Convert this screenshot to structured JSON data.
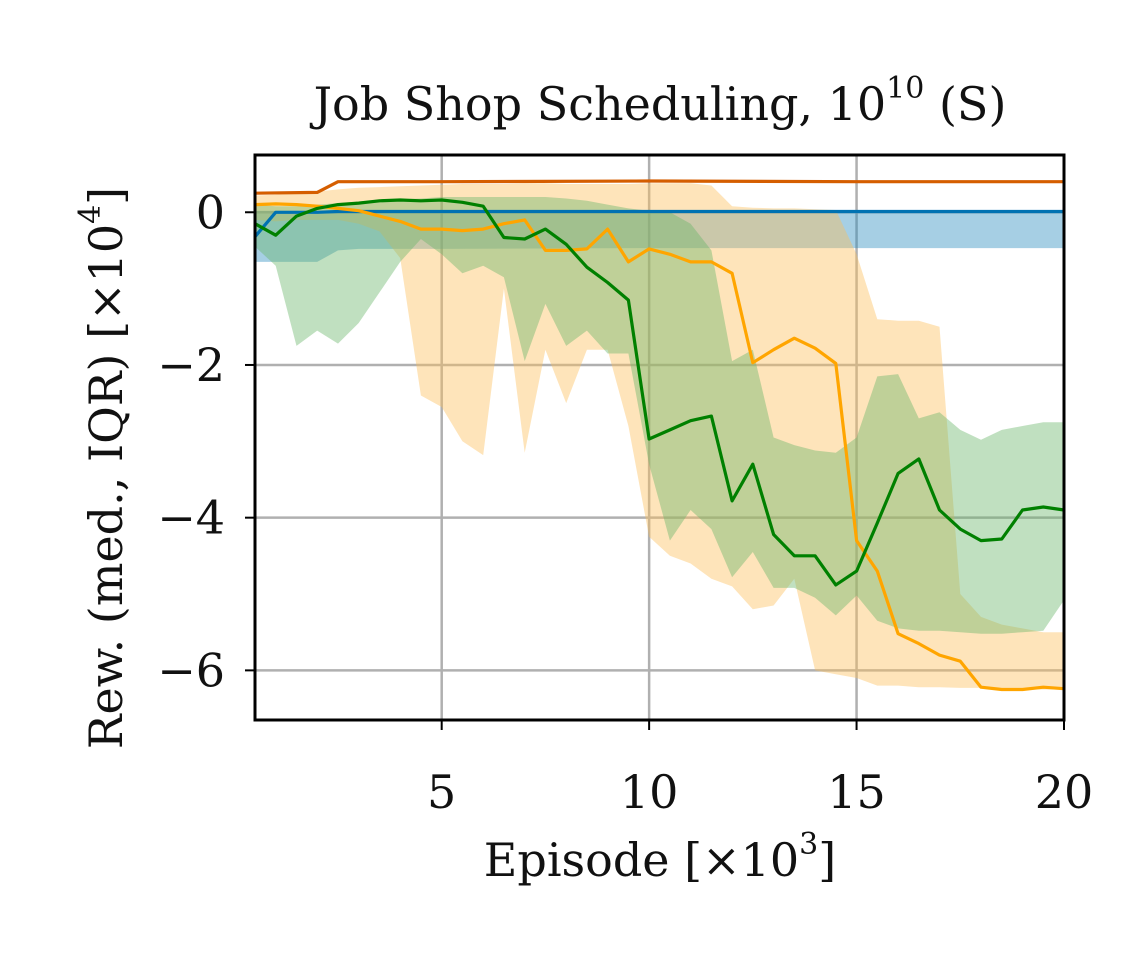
{
  "chart_data": {
    "type": "line",
    "title": "Job Shop Scheduling, 10",
    "title_sup": "10",
    "title_suffix": " (S)",
    "xlabel": "Episode [×10",
    "xlabel_sup": "3",
    "xlabel_suffix": "]",
    "ylabel": "Rew. (med., IQR) [×10",
    "ylabel_sup": "4",
    "ylabel_suffix": "]",
    "xlim": [
      0.5,
      20
    ],
    "ylim": [
      -6.65,
      0.75
    ],
    "xticks": [
      5,
      10,
      15,
      20
    ],
    "xtick_labels": [
      "5",
      "10",
      "15",
      "20"
    ],
    "yticks": [
      0,
      -2,
      -4,
      -6
    ],
    "ytick_labels": [
      "0",
      "−2",
      "−4",
      "−6"
    ],
    "grid": true,
    "legend": "none",
    "series": [
      {
        "color": "#d55e00",
        "x": [
          0.5,
          2,
          2.5,
          5,
          10,
          15,
          20
        ],
        "median": [
          0.25,
          0.26,
          0.4,
          0.4,
          0.41,
          0.4,
          0.4
        ]
      },
      {
        "color": "#0072b2",
        "x": [
          0.5,
          1,
          1.5,
          2,
          2.5,
          3,
          4,
          5,
          10,
          15,
          20
        ],
        "median": [
          -0.32,
          0.0,
          0.0,
          0.0,
          0.01,
          0.01,
          0.01,
          0.01,
          0.01,
          0.01,
          0.01
        ],
        "q1": [
          -0.65,
          -0.65,
          -0.65,
          -0.65,
          -0.5,
          -0.48,
          -0.48,
          -0.48,
          -0.47,
          -0.47,
          -0.47
        ],
        "q3": [
          0.02,
          0.02,
          0.02,
          0.02,
          0.02,
          0.02,
          0.02,
          0.02,
          0.02,
          0.02,
          0.02
        ],
        "band_color": "#2b8cbe"
      },
      {
        "color": "#ffa500",
        "x": [
          0.5,
          1,
          1.5,
          2,
          2.5,
          3,
          3.5,
          4,
          4.5,
          5,
          5.5,
          6,
          6.5,
          7,
          7.5,
          8,
          8.5,
          9,
          9.5,
          10,
          10.5,
          11,
          11.5,
          12,
          12.5,
          13,
          13.5,
          14,
          14.5,
          15,
          15.5,
          16,
          16.5,
          17,
          17.5,
          18,
          18.5,
          19,
          19.5,
          20
        ],
        "median": [
          0.1,
          0.11,
          0.1,
          0.08,
          0.05,
          0.02,
          -0.05,
          -0.12,
          -0.22,
          -0.22,
          -0.24,
          -0.22,
          -0.15,
          -0.1,
          -0.5,
          -0.5,
          -0.48,
          -0.22,
          -0.65,
          -0.48,
          -0.55,
          -0.65,
          -0.65,
          -0.8,
          -1.97,
          -1.8,
          -1.65,
          -1.78,
          -1.98,
          -4.3,
          -4.7,
          -5.52,
          -5.65,
          -5.8,
          -5.88,
          -6.22,
          -6.25,
          -6.25,
          -6.22,
          -6.24
        ],
        "q1": [
          -0.1,
          -0.12,
          -0.1,
          -0.1,
          -0.1,
          -0.15,
          -0.25,
          -0.6,
          -2.4,
          -2.55,
          -3.0,
          -3.18,
          -1.0,
          -3.15,
          -1.8,
          -2.5,
          -1.8,
          -1.8,
          -2.8,
          -4.25,
          -4.5,
          -4.6,
          -4.8,
          -4.9,
          -5.2,
          -5.15,
          -4.8,
          -6.0,
          -6.05,
          -6.1,
          -6.2,
          -6.2,
          -6.22,
          -6.22,
          -6.23,
          -6.23,
          -6.24,
          -6.25,
          -6.25,
          -6.25
        ],
        "q3": [
          0.22,
          0.23,
          0.25,
          0.27,
          0.3,
          0.32,
          0.33,
          0.34,
          0.35,
          0.36,
          0.37,
          0.37,
          0.37,
          0.38,
          0.38,
          0.37,
          0.37,
          0.37,
          0.37,
          0.38,
          0.38,
          0.38,
          0.35,
          0.08,
          0.06,
          0.05,
          0.05,
          0.04,
          0.03,
          -0.55,
          -1.4,
          -1.42,
          -1.42,
          -1.5,
          -5.0,
          -5.3,
          -5.4,
          -5.45,
          -5.5,
          -5.5
        ],
        "band_color": "#fdbe5a"
      },
      {
        "color": "#008000",
        "x": [
          0.5,
          1,
          1.5,
          2,
          2.5,
          3,
          3.5,
          4,
          4.5,
          5,
          5.5,
          6,
          6.5,
          7,
          7.5,
          8,
          8.5,
          9,
          9.5,
          10,
          10.5,
          11,
          11.5,
          12,
          12.5,
          13,
          13.5,
          14,
          14.5,
          15,
          15.5,
          16,
          16.5,
          17,
          17.5,
          18,
          18.5,
          19,
          19.5,
          20
        ],
        "median": [
          -0.15,
          -0.3,
          -0.05,
          0.05,
          0.1,
          0.12,
          0.15,
          0.16,
          0.15,
          0.16,
          0.13,
          0.08,
          -0.33,
          -0.35,
          -0.22,
          -0.42,
          -0.72,
          -0.92,
          -1.15,
          -2.97,
          -2.85,
          -2.73,
          -2.67,
          -3.78,
          -3.3,
          -4.22,
          -4.5,
          -4.5,
          -4.88,
          -4.7,
          -4.07,
          -3.42,
          -3.23,
          -3.9,
          -4.15,
          -4.3,
          -4.28,
          -3.9,
          -3.86,
          -3.9
        ],
        "q1": [
          -0.45,
          -0.7,
          -1.75,
          -1.55,
          -1.72,
          -1.45,
          -1.05,
          -0.65,
          -0.35,
          -0.55,
          -0.8,
          -0.7,
          -0.85,
          -1.95,
          -1.2,
          -1.75,
          -1.55,
          -1.85,
          -1.85,
          -3.3,
          -4.3,
          -3.9,
          -4.15,
          -4.78,
          -4.45,
          -4.92,
          -4.92,
          -5.05,
          -5.28,
          -5.02,
          -5.35,
          -5.45,
          -5.48,
          -5.48,
          -5.5,
          -5.52,
          -5.52,
          -5.5,
          -5.48,
          -5.08
        ],
        "q3": [
          0.1,
          0.08,
          0.08,
          0.1,
          0.12,
          0.14,
          0.16,
          0.17,
          0.18,
          0.2,
          0.2,
          0.2,
          0.2,
          0.2,
          0.2,
          0.18,
          0.15,
          0.1,
          0.05,
          0.02,
          0.0,
          -0.15,
          -0.5,
          -1.95,
          -1.8,
          -2.95,
          -3.05,
          -3.12,
          -3.15,
          -2.95,
          -2.15,
          -2.12,
          -2.7,
          -2.62,
          -2.85,
          -2.98,
          -2.85,
          -2.8,
          -2.75,
          -2.75
        ],
        "band_color": "#6ab56a"
      }
    ]
  }
}
